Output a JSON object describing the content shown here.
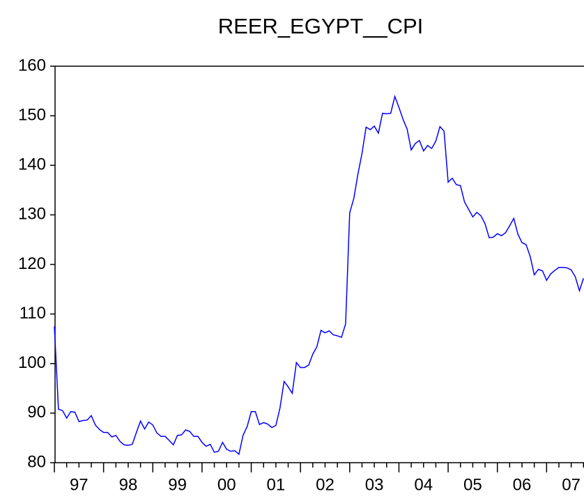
{
  "chart_data": {
    "type": "line",
    "title": "REER_EGYPT__CPI",
    "x": [
      1997,
      1997.083,
      1997.167,
      1997.25,
      1997.333,
      1997.417,
      1997.5,
      1997.583,
      1997.667,
      1997.75,
      1997.833,
      1997.917,
      1998,
      1998.083,
      1998.167,
      1998.25,
      1998.333,
      1998.417,
      1998.5,
      1998.583,
      1998.667,
      1998.75,
      1998.833,
      1998.917,
      1999,
      1999.083,
      1999.167,
      1999.25,
      1999.333,
      1999.417,
      1999.5,
      1999.583,
      1999.667,
      1999.75,
      1999.833,
      1999.917,
      2000,
      2000.083,
      2000.167,
      2000.25,
      2000.333,
      2000.417,
      2000.5,
      2000.583,
      2000.667,
      2000.75,
      2000.833,
      2000.917,
      2001,
      2001.083,
      2001.167,
      2001.25,
      2001.333,
      2001.417,
      2001.5,
      2001.583,
      2001.667,
      2001.75,
      2001.833,
      2001.917,
      2002,
      2002.083,
      2002.167,
      2002.25,
      2002.333,
      2002.417,
      2002.5,
      2002.583,
      2002.667,
      2002.75,
      2002.833,
      2002.917,
      2003,
      2003.083,
      2003.167,
      2003.25,
      2003.333,
      2003.417,
      2003.5,
      2003.583,
      2003.667,
      2003.75,
      2003.833,
      2003.917,
      2004,
      2004.083,
      2004.167,
      2004.25,
      2004.333,
      2004.417,
      2004.5,
      2004.583,
      2004.667,
      2004.75,
      2004.833,
      2004.917,
      2005,
      2005.083,
      2005.167,
      2005.25,
      2005.333,
      2005.417,
      2005.5,
      2005.583,
      2005.667,
      2005.75,
      2005.833,
      2005.917,
      2006,
      2006.083,
      2006.167,
      2006.25,
      2006.333,
      2006.417,
      2006.5,
      2006.583,
      2006.667,
      2006.75,
      2006.833,
      2006.917,
      2007,
      2007.083,
      2007.167,
      2007.25,
      2007.333,
      2007.417,
      2007.5,
      2007.583,
      2007.667,
      2007.75
    ],
    "series": [
      {
        "name": "REER_EGYPT__CPI",
        "color": "#0000ff",
        "values": [
          107.5,
          90.8,
          90.5,
          89,
          90.3,
          90.2,
          88.3,
          88.5,
          88.6,
          89.5,
          87.6,
          86.7,
          86.1,
          86.1,
          85.2,
          85.5,
          84.3,
          83.6,
          83.5,
          83.7,
          86.1,
          88.4,
          86.8,
          88.2,
          87.6,
          86,
          85.3,
          85.3,
          84.5,
          83.6,
          85.5,
          85.6,
          86.6,
          86.3,
          85.3,
          85.3,
          84.1,
          83.3,
          83.7,
          82.1,
          82.3,
          84.1,
          82.7,
          82.3,
          82.4,
          81.7,
          85.5,
          87.3,
          90.3,
          90.3,
          87.7,
          88.1,
          87.8,
          87.1,
          87.5,
          91,
          96.4,
          95.3,
          94,
          100.2,
          99.2,
          99.2,
          99.7,
          101.9,
          103.4,
          106.7,
          106.2,
          106.6,
          105.8,
          105.6,
          105.3,
          108,
          130.4,
          133.3,
          138.2,
          142.4,
          147.7,
          147.2,
          147.9,
          146.5,
          150.5,
          150.4,
          150.5,
          153.9,
          151.7,
          149.3,
          147.3,
          143.1,
          144.4,
          145,
          142.9,
          144,
          143.4,
          144.9,
          147.8,
          146.9,
          136.6,
          137.4,
          136.1,
          135.9,
          132.6,
          131.1,
          129.6,
          130.5,
          129.8,
          128.2,
          125.4,
          125.5,
          126.2,
          125.8,
          126.4,
          127.8,
          129.3,
          126.1,
          124.4,
          124,
          121.6,
          117.9,
          119,
          118.7,
          116.8,
          118.1,
          118.8,
          119.4,
          119.4,
          119.3,
          118.9,
          117.5,
          114.7,
          117.2
        ]
      }
    ],
    "xlim": [
      1997,
      2007.76
    ],
    "xticks": [
      {
        "value": 1997,
        "label": "97"
      },
      {
        "value": 1998,
        "label": "98"
      },
      {
        "value": 1999,
        "label": "99"
      },
      {
        "value": 2000,
        "label": "00"
      },
      {
        "value": 2001,
        "label": "01"
      },
      {
        "value": 2002,
        "label": "02"
      },
      {
        "value": 2003,
        "label": "03"
      },
      {
        "value": 2004,
        "label": "04"
      },
      {
        "value": 2005,
        "label": "05"
      },
      {
        "value": 2006,
        "label": "06"
      },
      {
        "value": 2007,
        "label": "07"
      }
    ],
    "ylim": [
      80,
      160
    ],
    "yticks": [
      80,
      90,
      100,
      110,
      120,
      130,
      140,
      150,
      160
    ]
  }
}
